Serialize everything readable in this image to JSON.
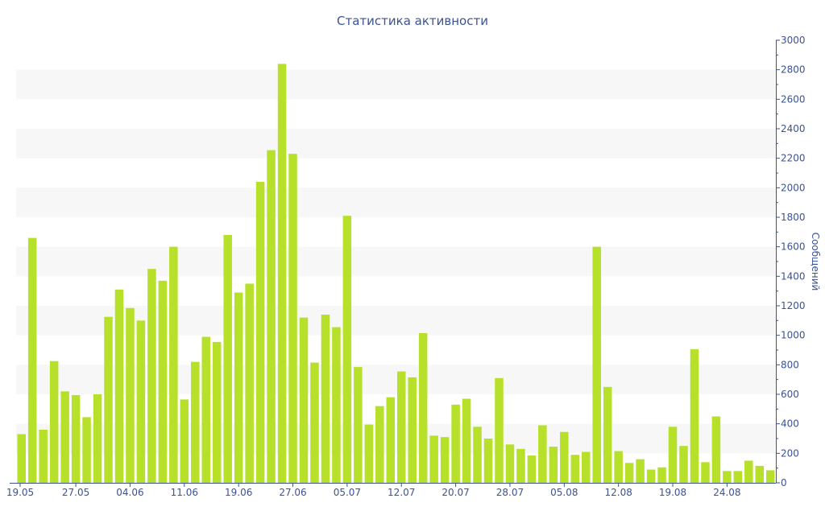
{
  "chart_data": {
    "type": "bar",
    "title": "Статистика активности",
    "xlabel": "",
    "ylabel": "Сообщений",
    "ylim": [
      0,
      3000
    ],
    "yticks": [
      0,
      200,
      400,
      600,
      800,
      1000,
      1200,
      1400,
      1600,
      1800,
      2000,
      2200,
      2400,
      2600,
      2800,
      3000
    ],
    "xtick_labels": [
      {
        "label": "19.05",
        "index": 0
      },
      {
        "label": "27.05",
        "index": 5
      },
      {
        "label": "04.06",
        "index": 10
      },
      {
        "label": "11.06",
        "index": 15
      },
      {
        "label": "19.06",
        "index": 20
      },
      {
        "label": "27.06",
        "index": 25
      },
      {
        "label": "05.07",
        "index": 30
      },
      {
        "label": "12.07",
        "index": 35
      },
      {
        "label": "20.07",
        "index": 40
      },
      {
        "label": "28.07",
        "index": 45
      },
      {
        "label": "05.08",
        "index": 50
      },
      {
        "label": "12.08",
        "index": 55
      },
      {
        "label": "19.08",
        "index": 60
      },
      {
        "label": "24.08",
        "index": 65
      }
    ],
    "values": [
      330,
      1660,
      360,
      825,
      620,
      595,
      445,
      600,
      1125,
      1310,
      1185,
      1100,
      1450,
      1370,
      1600,
      565,
      820,
      990,
      955,
      1680,
      1290,
      1350,
      2040,
      2255,
      2840,
      2230,
      1120,
      815,
      1140,
      1055,
      1810,
      785,
      395,
      520,
      580,
      755,
      715,
      1015,
      320,
      310,
      530,
      570,
      380,
      300,
      710,
      260,
      230,
      185,
      390,
      245,
      345,
      190,
      210,
      1600,
      650,
      215,
      135,
      160,
      90,
      105,
      380,
      250,
      905,
      140,
      450,
      80,
      80,
      150,
      115,
      85
    ],
    "bar_color": "#b7e02a",
    "grid_band_color": "#f7f7f7",
    "axis_color": "#3a5296",
    "grid": true,
    "legend": "none"
  }
}
